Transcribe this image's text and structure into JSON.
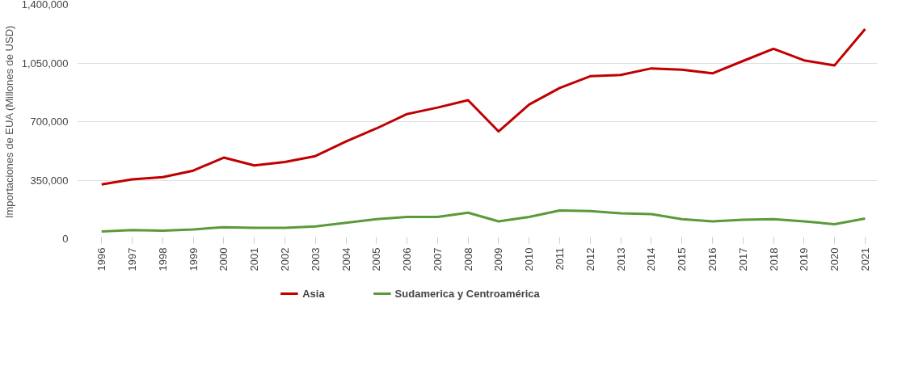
{
  "chart_data": {
    "type": "line",
    "ylabel": "Importaciones de EUA (Millones de USD)",
    "categories": [
      "1996",
      "1997",
      "1998",
      "1999",
      "2000",
      "2001",
      "2002",
      "2003",
      "2004",
      "2005",
      "2006",
      "2007",
      "2008",
      "2009",
      "2010",
      "2011",
      "2012",
      "2013",
      "2014",
      "2015",
      "2016",
      "2017",
      "2018",
      "2019",
      "2020",
      "2021"
    ],
    "ylim": [
      0,
      1400000
    ],
    "yticks": [
      {
        "value": 0,
        "label": "0"
      },
      {
        "value": 350000,
        "label": "350,000"
      },
      {
        "value": 700000,
        "label": "700,000"
      },
      {
        "value": 1050000,
        "label": "1,050,000"
      },
      {
        "value": 1400000,
        "label": "1,400,000"
      }
    ],
    "grid": "y",
    "legend": "bottom",
    "marker": "none",
    "line_style": "solid",
    "series": [
      {
        "name": "Asia",
        "color": "#c00000",
        "values": [
          325000,
          355000,
          368000,
          407000,
          485000,
          438000,
          459000,
          494000,
          581000,
          659000,
          745000,
          784000,
          828000,
          641000,
          802000,
          901000,
          971000,
          979000,
          1018000,
          1010000,
          988000,
          1062000,
          1135000,
          1066000,
          1036000,
          1253000
        ]
      },
      {
        "name": "Sudamerica y Centroamérica",
        "color": "#5a9a3a",
        "values": [
          43000,
          52000,
          48000,
          56000,
          69000,
          65000,
          65000,
          74000,
          95000,
          117000,
          130000,
          130000,
          156000,
          104000,
          130000,
          169000,
          165000,
          152000,
          147000,
          117000,
          104000,
          113000,
          117000,
          104000,
          87000,
          121000
        ]
      }
    ]
  }
}
